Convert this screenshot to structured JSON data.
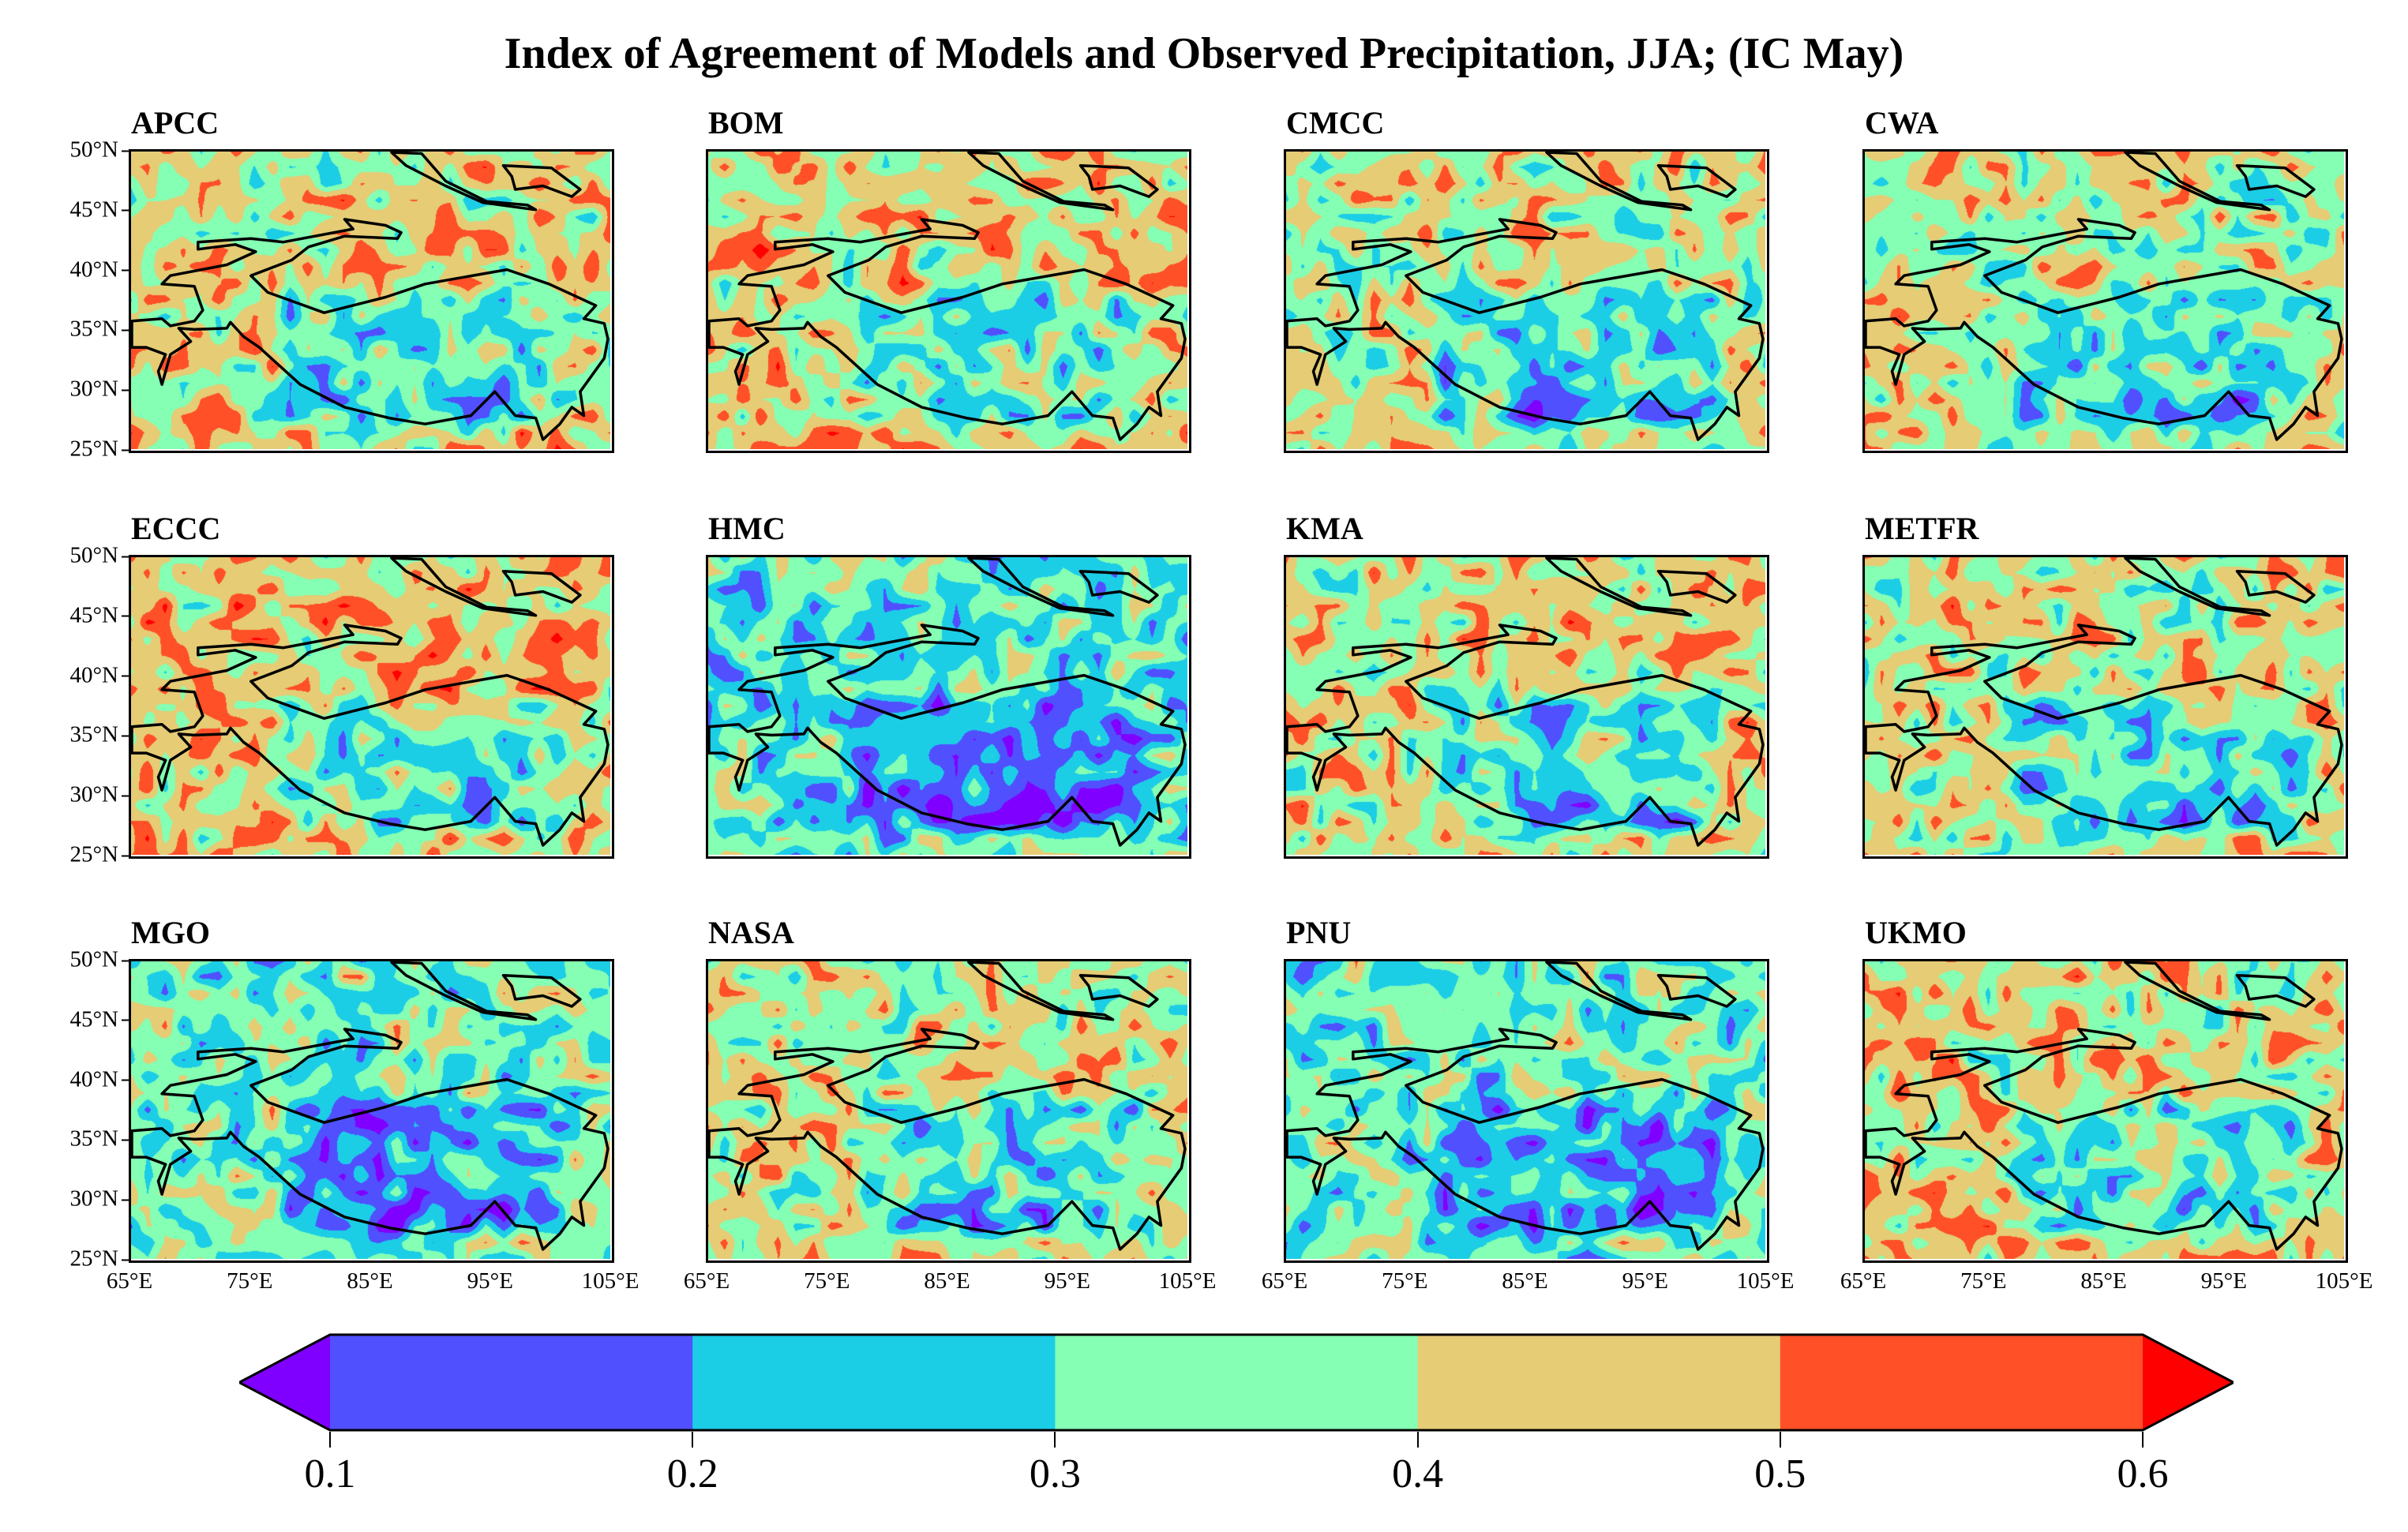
{
  "title": "Index of Agreement of Models and Observed Precipitation, JJA;  (IC  May)",
  "panels": [
    {
      "label": "APCC"
    },
    {
      "label": "BOM"
    },
    {
      "label": "CMCC"
    },
    {
      "label": "CWA"
    },
    {
      "label": "ECCC"
    },
    {
      "label": "HMC"
    },
    {
      "label": "KMA"
    },
    {
      "label": "METFR"
    },
    {
      "label": "MGO"
    },
    {
      "label": "NASA"
    },
    {
      "label": "PNU"
    },
    {
      "label": "UKMO"
    }
  ],
  "map_extent": {
    "lon": [
      65,
      105
    ],
    "lat": [
      25,
      50
    ]
  },
  "lat_ticks": [
    "50°N",
    "45°N",
    "40°N",
    "35°N",
    "30°N",
    "25°N"
  ],
  "lon_ticks": [
    "65°E",
    "75°E",
    "85°E",
    "95°E",
    "105°E"
  ],
  "colorbar": {
    "levels": [
      0.1,
      0.2,
      0.3,
      0.4,
      0.5,
      0.6
    ],
    "tick_labels": [
      "0.1",
      "0.2",
      "0.3",
      "0.4",
      "0.5",
      "0.6"
    ],
    "colors": [
      "#8000ff",
      "#5050ff",
      "#1ccde6",
      "#84ffb4",
      "#e5cc75",
      "#ff5028",
      "#ff0000"
    ],
    "extend": "both"
  }
}
